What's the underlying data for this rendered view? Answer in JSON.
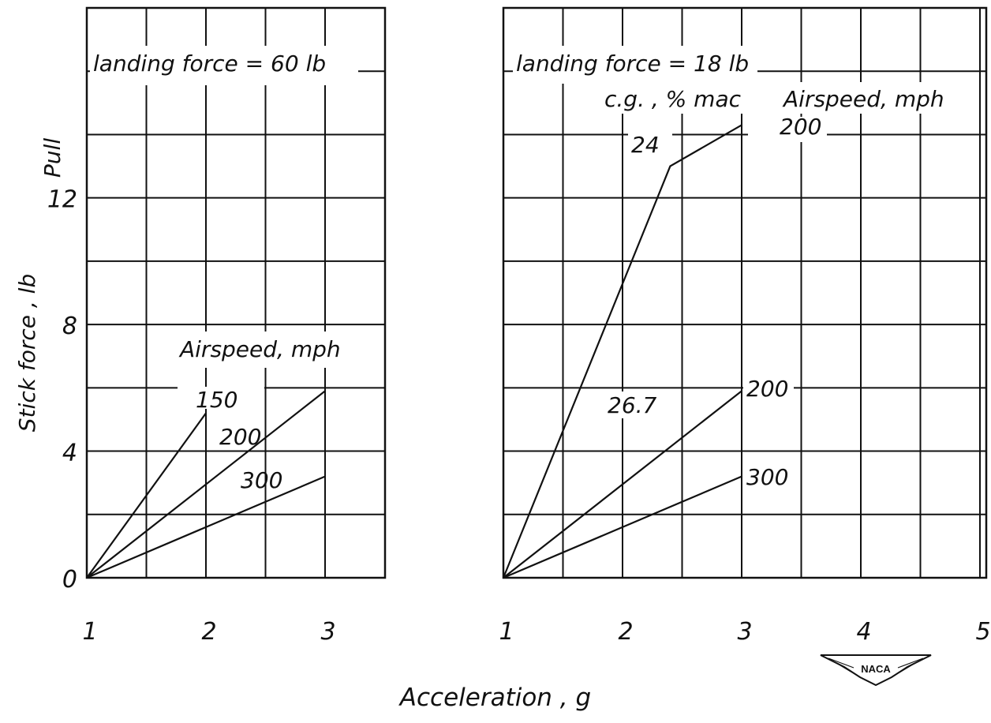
{
  "y_axis": {
    "label": "Stick force , lb",
    "pull_label": "Pull",
    "ticks": [
      "0",
      "4",
      "8",
      "12"
    ]
  },
  "x_axis": {
    "label": "Acceleration , g"
  },
  "chart_data": [
    {
      "type": "line",
      "title": "landing force = 60 lb",
      "xlabel": "Acceleration , g",
      "ylabel": "Stick force , lb",
      "x_ticks": [
        "1",
        "2",
        "3"
      ],
      "xlim": [
        1,
        3.5
      ],
      "ylim": [
        0,
        18
      ],
      "grid": true,
      "legend_title": "Airspeed, mph",
      "series": [
        {
          "name": "150",
          "x": [
            1,
            2
          ],
          "y": [
            0,
            5.2
          ]
        },
        {
          "name": "200",
          "x": [
            1,
            3
          ],
          "y": [
            0,
            5.9
          ]
        },
        {
          "name": "300",
          "x": [
            1,
            3
          ],
          "y": [
            0,
            3.2
          ]
        }
      ]
    },
    {
      "type": "line",
      "title": "landing force = 18 lb",
      "xlabel": "Acceleration , g",
      "ylabel": "Stick force , lb",
      "x_ticks": [
        "1",
        "2",
        "3",
        "4",
        "5"
      ],
      "xlim": [
        1,
        5
      ],
      "ylim": [
        0,
        18
      ],
      "grid": true,
      "cg_header": "c.g. , % mac",
      "airspeed_header": "Airspeed, mph",
      "series": [
        {
          "name": "24",
          "airspeed": "200",
          "x": [
            1,
            2.4,
            3
          ],
          "y": [
            0,
            13,
            14.3
          ]
        },
        {
          "name": "26.7",
          "airspeed": "200",
          "x": [
            1,
            3
          ],
          "y": [
            0,
            5.9
          ]
        },
        {
          "name": "26.7",
          "airspeed": "300",
          "x": [
            1,
            3
          ],
          "y": [
            0,
            3.2
          ]
        }
      ]
    }
  ],
  "logo": {
    "text": "NACA"
  }
}
